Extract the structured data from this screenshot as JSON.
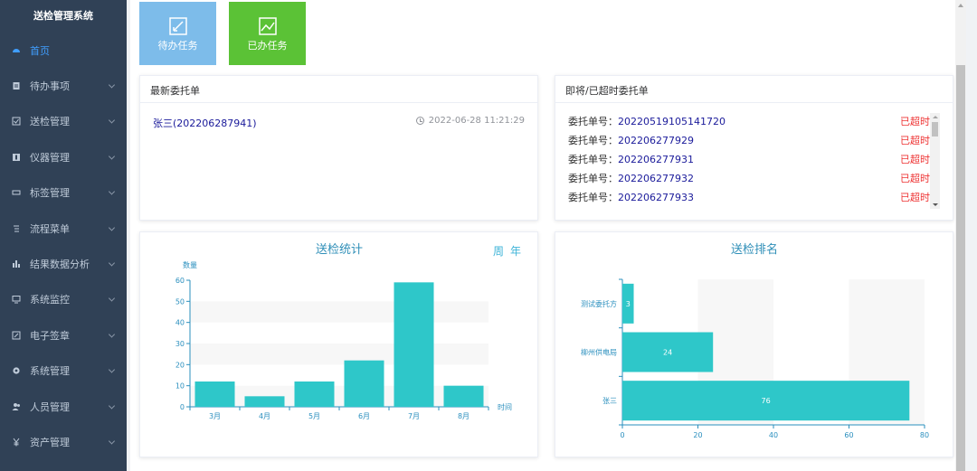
{
  "sidebar": {
    "app_title": "送检管理系统",
    "items": [
      {
        "label": "首页",
        "icon": "dashboard-icon",
        "active": true,
        "expandable": false
      },
      {
        "label": "待办事项",
        "icon": "document-icon",
        "active": false,
        "expandable": true
      },
      {
        "label": "送检管理",
        "icon": "checkbox-icon",
        "active": false,
        "expandable": true
      },
      {
        "label": "仪器管理",
        "icon": "instrument-icon",
        "active": false,
        "expandable": true
      },
      {
        "label": "标签管理",
        "icon": "tag-icon",
        "active": false,
        "expandable": true
      },
      {
        "label": "流程菜单",
        "icon": "flow-icon",
        "active": false,
        "expandable": true
      },
      {
        "label": "结果数据分析",
        "icon": "bar-chart-icon",
        "active": false,
        "expandable": true
      },
      {
        "label": "系统监控",
        "icon": "monitor-icon",
        "active": false,
        "expandable": true
      },
      {
        "label": "电子签章",
        "icon": "edit-icon",
        "active": false,
        "expandable": true
      },
      {
        "label": "系统管理",
        "icon": "gear-icon",
        "active": false,
        "expandable": true
      },
      {
        "label": "人员管理",
        "icon": "people-icon",
        "active": false,
        "expandable": true
      },
      {
        "label": "资产管理",
        "icon": "yen-icon",
        "active": false,
        "expandable": true
      }
    ]
  },
  "tiles": {
    "todo_label": "待办任务",
    "done_label": "已办任务",
    "todo_color": "#7dbcea",
    "done_color": "#5bc236"
  },
  "latest": {
    "title": "最新委托单",
    "entry_text": "张三(202206287941)",
    "entry_time": "2022-06-28 11:21:29"
  },
  "overdue": {
    "title": "即将/已超时委托单",
    "label_prefix": "委托单号：",
    "items": [
      {
        "number": "20220519105141720",
        "status": "已超时"
      },
      {
        "number": "202206277929",
        "status": "已超时"
      },
      {
        "number": "202206277931",
        "status": "已超时"
      },
      {
        "number": "202206277932",
        "status": "已超时"
      },
      {
        "number": "202206277933",
        "status": "已超时"
      }
    ]
  },
  "toolbox": {
    "week": "周",
    "year": "年"
  },
  "colors": {
    "bar": "#2ec7c9",
    "axis": "#2a8fbe",
    "title": "#2f8fb8",
    "overdue": "#ee3333",
    "link": "#1a1a9a"
  },
  "chart_data": [
    {
      "type": "bar",
      "title": "送检统计",
      "categories": [
        "3月",
        "4月",
        "5月",
        "6月",
        "7月",
        "8月"
      ],
      "values": [
        12,
        5,
        12,
        22,
        59,
        10
      ],
      "xlabel": "时间",
      "ylabel": "数量",
      "ylim": [
        0,
        60
      ],
      "yticks": [
        0,
        10,
        20,
        30,
        40,
        50,
        60
      ],
      "grid": true
    },
    {
      "type": "bar",
      "orientation": "horizontal",
      "title": "送检排名",
      "categories": [
        "张三",
        "柳州供电局",
        "测试委托方"
      ],
      "values": [
        76,
        24,
        3
      ],
      "xlim": [
        0,
        80
      ],
      "xticks": [
        0,
        20,
        40,
        60,
        80
      ],
      "grid": true
    }
  ]
}
